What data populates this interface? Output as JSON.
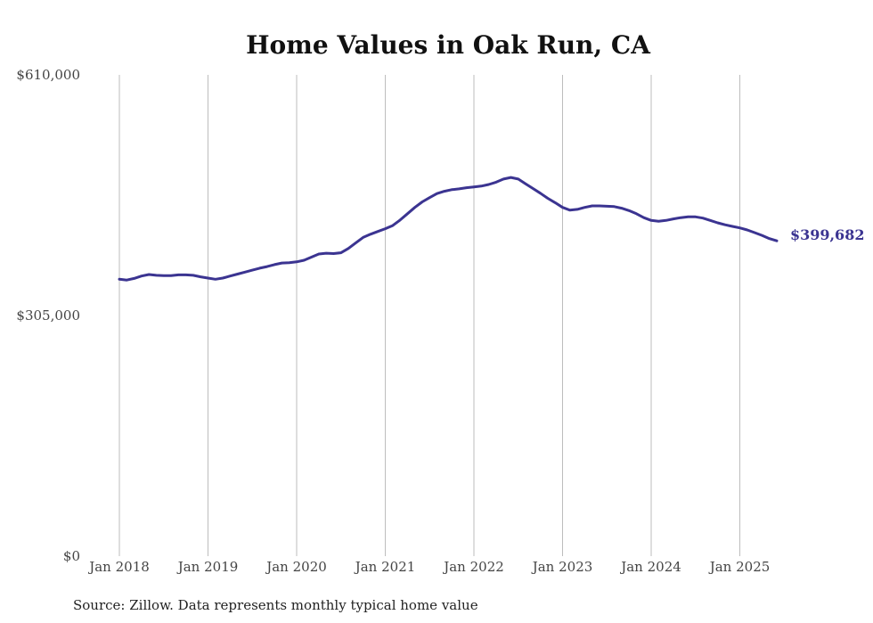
{
  "chart_data": {
    "type": "line",
    "title": "Home Values in Oak Run, CA",
    "xlabel": "",
    "ylabel": "",
    "ylim": [
      0,
      610000
    ],
    "y_ticks": [
      "$0",
      "$305,000",
      "$610,000"
    ],
    "y_tick_values": [
      0,
      305000,
      610000
    ],
    "x_ticks": [
      "Jan 2018",
      "Jan 2019",
      "Jan 2020",
      "Jan 2021",
      "Jan 2022",
      "Jan 2023",
      "Jan 2024",
      "Jan 2025"
    ],
    "x_tick_dates": [
      "2018-01",
      "2019-01",
      "2020-01",
      "2021-01",
      "2022-01",
      "2023-01",
      "2024-01",
      "2025-01"
    ],
    "grid": "vertical",
    "line_color": "#3b3491",
    "end_label": "$399,682",
    "series": [
      {
        "x": [
          "2018-01",
          "2018-02",
          "2018-03",
          "2018-04",
          "2018-05",
          "2018-06",
          "2018-07",
          "2018-08",
          "2018-09",
          "2018-10",
          "2018-11",
          "2018-12",
          "2019-01",
          "2019-02",
          "2019-03",
          "2019-04",
          "2019-05",
          "2019-06",
          "2019-07",
          "2019-08",
          "2019-09",
          "2019-10",
          "2019-11",
          "2019-12",
          "2020-01",
          "2020-02",
          "2020-03",
          "2020-04",
          "2020-05",
          "2020-06",
          "2020-07",
          "2020-08",
          "2020-09",
          "2020-10",
          "2020-11",
          "2020-12",
          "2021-01",
          "2021-02",
          "2021-03",
          "2021-04",
          "2021-05",
          "2021-06",
          "2021-07",
          "2021-08",
          "2021-09",
          "2021-10",
          "2021-11",
          "2021-12",
          "2022-01",
          "2022-02",
          "2022-03",
          "2022-04",
          "2022-05",
          "2022-06",
          "2022-07",
          "2022-08",
          "2022-09",
          "2022-10",
          "2022-11",
          "2022-12",
          "2023-01",
          "2023-02",
          "2023-03",
          "2023-04",
          "2023-05",
          "2023-06",
          "2023-07",
          "2023-08",
          "2023-09",
          "2023-10",
          "2023-11",
          "2023-12",
          "2024-01",
          "2024-02",
          "2024-03",
          "2024-04",
          "2024-05",
          "2024-06",
          "2024-07",
          "2024-08",
          "2024-09",
          "2024-10",
          "2024-11",
          "2024-12",
          "2025-01",
          "2025-02",
          "2025-03",
          "2025-04",
          "2025-05",
          "2025-06"
        ],
        "values": [
          351000,
          350000,
          352000,
          355000,
          357000,
          356000,
          355500,
          355500,
          356500,
          356500,
          356000,
          354000,
          352500,
          351000,
          352500,
          355000,
          357500,
          360000,
          362500,
          365000,
          367000,
          369500,
          371500,
          372000,
          373000,
          375000,
          379000,
          383000,
          384000,
          383500,
          384500,
          390000,
          397000,
          404000,
          408000,
          411500,
          415000,
          419000,
          426000,
          434000,
          442000,
          449000,
          454500,
          459500,
          462500,
          464500,
          465500,
          467000,
          468000,
          469000,
          471000,
          474000,
          478000,
          480000,
          478000,
          472000,
          466000,
          460000,
          453500,
          448000,
          442000,
          438500,
          439500,
          442000,
          444000,
          444000,
          443500,
          443000,
          441000,
          438000,
          434000,
          429000,
          425500,
          424500,
          425500,
          427500,
          429000,
          430000,
          430000,
          428500,
          425500,
          422500,
          420000,
          418000,
          416000,
          413500,
          410000,
          406500,
          402500,
          399682
        ]
      }
    ],
    "source": "Source: Zillow. Data represents monthly typical home value"
  }
}
